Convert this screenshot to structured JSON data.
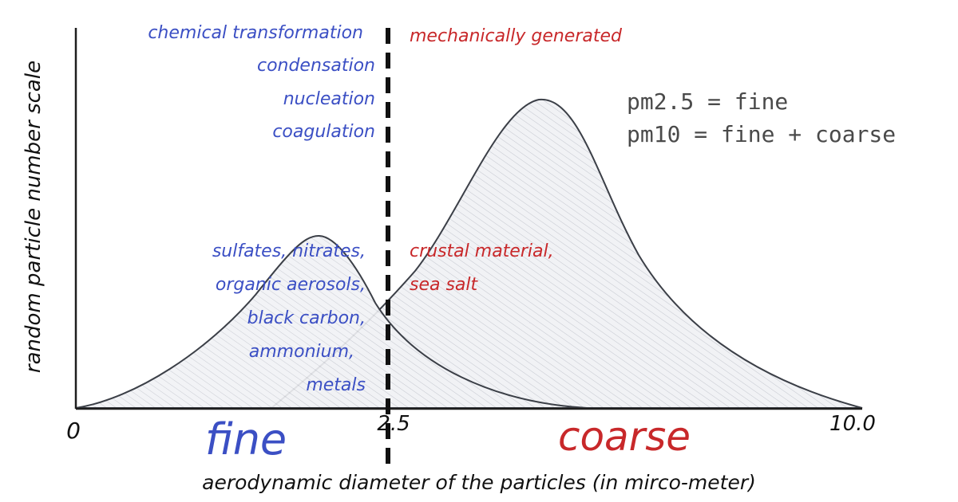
{
  "diagram": {
    "y_axis_label": "random particle number scale",
    "x_axis_label": "aerodynamic diameter of the particles (in mirco-meter)",
    "ticks": {
      "start": "0",
      "mid": "2.5",
      "end": "10.0"
    },
    "regions": {
      "fine": "fine",
      "coarse": "coarse"
    },
    "fine_processes": [
      "chemical transformation",
      "condensation",
      "nucleation",
      "coagulation"
    ],
    "coarse_process": "mechanically generated",
    "fine_components": [
      "sulfates, nitrates,",
      "organic aerosols,",
      "black carbon,",
      "ammonium,",
      "metals"
    ],
    "coarse_components": [
      "crustal material,",
      "sea salt"
    ],
    "legend": [
      "pm2.5 = fine",
      "pm10 = fine + coarse"
    ],
    "colors": {
      "blue": "#3b4fc4",
      "red": "#c8282a",
      "ink": "#1e1e1e",
      "gray": "#4a4a4a",
      "fill": "#e9eaee"
    }
  }
}
